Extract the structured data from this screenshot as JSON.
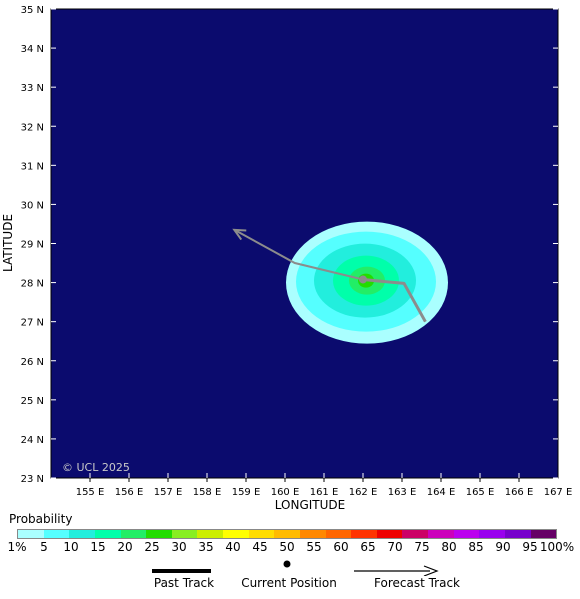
{
  "map": {
    "background_color": "#0b0b6e",
    "grid_color": "#ffffff",
    "copyright": "© UCL 2025",
    "x_axis_title": "LONGITUDE",
    "y_axis_title": "LATITUDE",
    "lon_ticks": [
      "155 E",
      "156 E",
      "157 E",
      "158 E",
      "159 E",
      "160 E",
      "161 E",
      "162 E",
      "163 E",
      "164 E",
      "165 E",
      "166 E",
      "167 E"
    ],
    "lat_ticks": [
      "35 N",
      "34 N",
      "33 N",
      "32 N",
      "31 N",
      "30 N",
      "29 N",
      "28 N",
      "27 N",
      "26 N",
      "25 N",
      "24 N",
      "23 N"
    ],
    "probability_field": {
      "center_lon": 162.0,
      "center_lat": 28.05,
      "contours_percent": [
        1,
        5,
        10,
        15,
        20,
        25
      ]
    },
    "track": {
      "color": "#8c8c8c",
      "past_points": [
        [
          163.6,
          27.0
        ],
        [
          163.05,
          27.98
        ]
      ],
      "current_position": [
        162.0,
        28.08
      ],
      "forecast_points": [
        [
          162.0,
          28.08
        ],
        [
          160.25,
          28.5
        ],
        [
          158.7,
          29.35
        ]
      ]
    }
  },
  "legend": {
    "title": "Probability",
    "labels": [
      "1%",
      "5",
      "10",
      "15",
      "20",
      "25",
      "30",
      "35",
      "40",
      "45",
      "50",
      "55",
      "60",
      "65",
      "70",
      "75",
      "80",
      "85",
      "90",
      "95",
      "100%"
    ],
    "colors": [
      "#aaffff",
      "#55ffff",
      "#22eedd",
      "#00ffaa",
      "#22ee66",
      "#22dd00",
      "#88ee22",
      "#ccee00",
      "#ffff00",
      "#ffdd00",
      "#ffbb00",
      "#ff8800",
      "#ff6600",
      "#ff3300",
      "#ee0000",
      "#cc0066",
      "#cc00bb",
      "#bb00ee",
      "#9900ee",
      "#7700cc",
      "#660066"
    ],
    "past_track_label": "Past Track",
    "current_position_label": "Current Position",
    "forecast_track_label": "Forecast Track"
  }
}
